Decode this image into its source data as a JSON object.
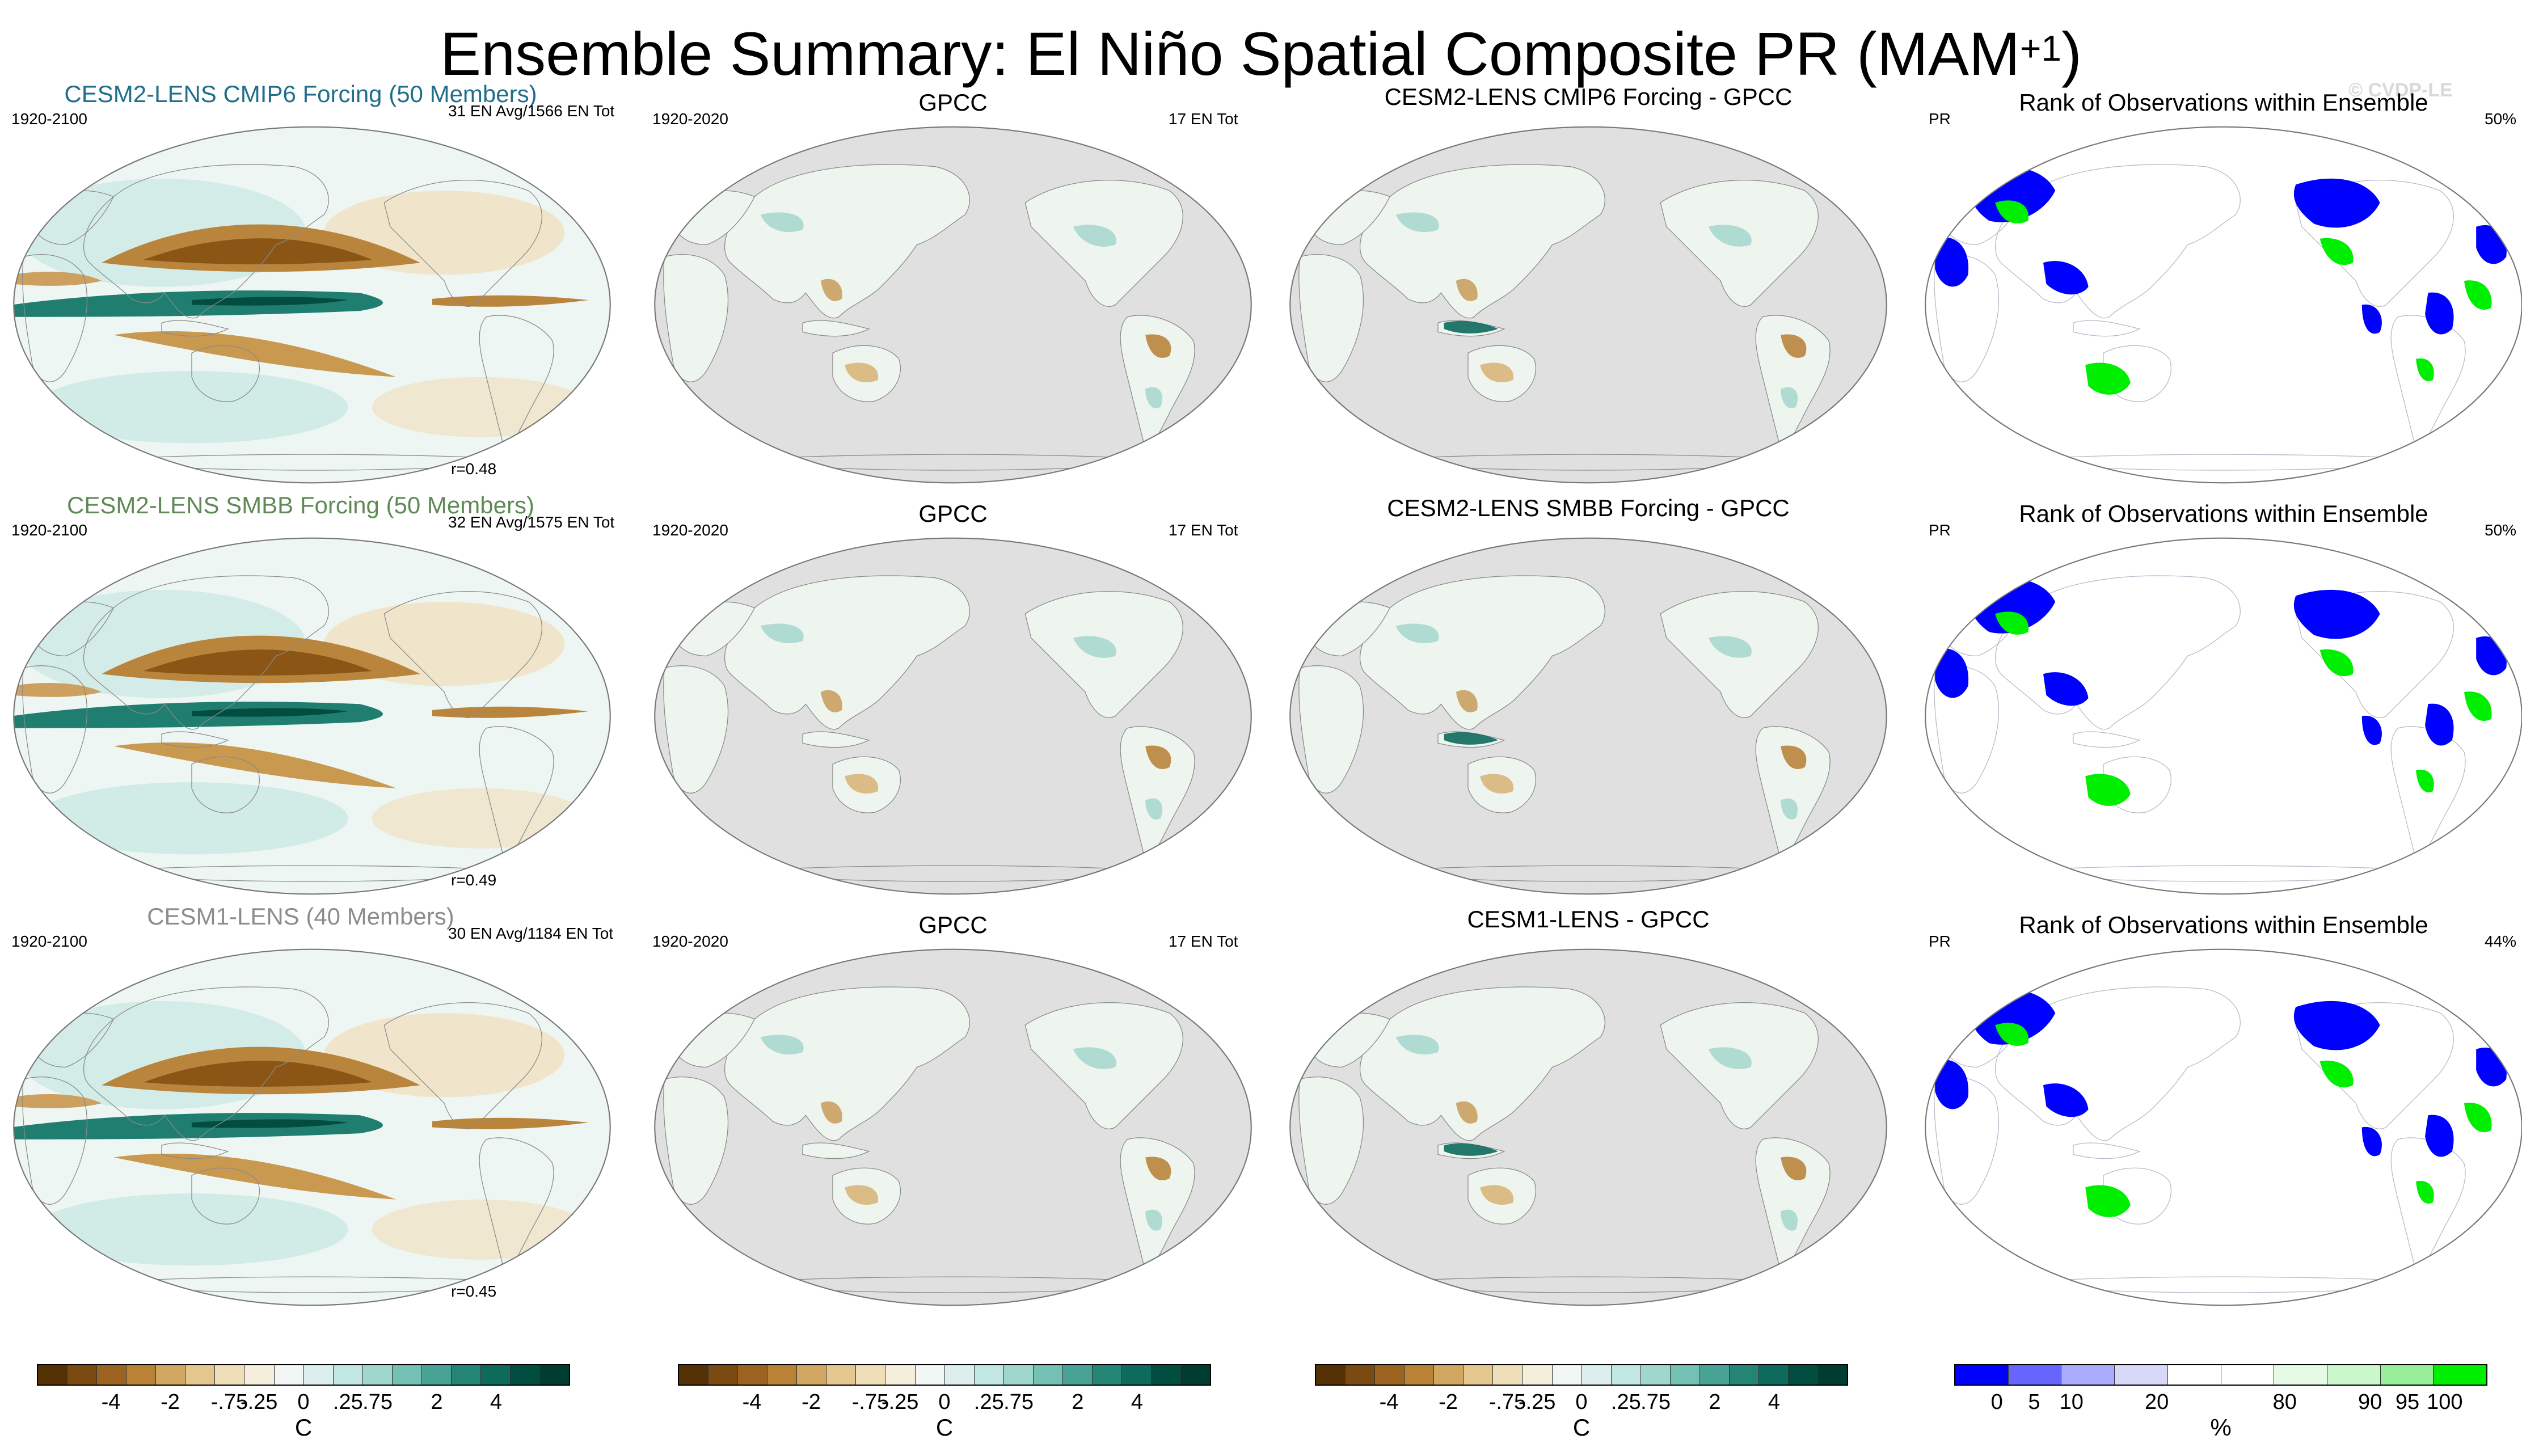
{
  "title": {
    "main": "Ensemble Summary: El Niño Spatial Composite PR (MAM",
    "superscript": "+1",
    "close": ")"
  },
  "watermark": "© CVDP-LE",
  "rows": [
    {
      "ensemble": {
        "title": "CESM2-LENS CMIP6 Forcing (50 Members)",
        "title_color": "#1f6f8b",
        "period": "1920-2100",
        "counts": "31 EN Avg/1566 EN Tot",
        "corr": "r=0.48"
      },
      "obs": {
        "title": "GPCC",
        "period": "1920-2020",
        "counts": "17 EN Tot"
      },
      "diff": {
        "title": "CESM2-LENS CMIP6 Forcing - GPCC"
      },
      "rank": {
        "title": "Rank of Observations within Ensemble",
        "var": "PR",
        "pct": "50%"
      }
    },
    {
      "ensemble": {
        "title": "CESM2-LENS SMBB Forcing (50 Members)",
        "title_color": "#5f8a55",
        "period": "1920-2100",
        "counts": "32 EN Avg/1575 EN Tot",
        "corr": "r=0.49"
      },
      "obs": {
        "title": "GPCC",
        "period": "1920-2020",
        "counts": "17 EN Tot"
      },
      "diff": {
        "title": "CESM2-LENS SMBB Forcing - GPCC"
      },
      "rank": {
        "title": "Rank of Observations within Ensemble",
        "var": "PR",
        "pct": "50%"
      }
    },
    {
      "ensemble": {
        "title": "CESM1-LENS (40 Members)",
        "title_color": "#8c8c8c",
        "period": "1920-2100",
        "counts": "30 EN Avg/1184 EN Tot",
        "corr": "r=0.45"
      },
      "obs": {
        "title": "GPCC",
        "period": "1920-2020",
        "counts": "17 EN Tot"
      },
      "diff": {
        "title": "CESM1-LENS - GPCC"
      },
      "rank": {
        "title": "Rank of Observations within Ensemble",
        "var": "PR",
        "pct": "44%"
      }
    }
  ],
  "colorbar_brbg": {
    "colors": [
      "#543005",
      "#7a4a12",
      "#9c6320",
      "#b98237",
      "#d1a660",
      "#e3c78f",
      "#efdfb8",
      "#f6eedc",
      "#f2f7f5",
      "#dcefed",
      "#c2e6e1",
      "#9fd6cd",
      "#74c0b3",
      "#48a396",
      "#248576",
      "#0d6a5c",
      "#014d40",
      "#003c30"
    ],
    "labels": [
      "-4",
      "-2",
      "-.75",
      "-.25",
      "0",
      ".25",
      ".75",
      "2",
      "4"
    ],
    "unit": "C"
  },
  "colorbar_rank": {
    "colors": [
      "#0000ff",
      "#6666ff",
      "#aaaaff",
      "#d8d8f8",
      "#ffffff",
      "#ffffff",
      "#e6fbe6",
      "#ccf7cc",
      "#99ee99",
      "#00ee00"
    ],
    "labels": [
      "0",
      "5",
      "10",
      "20",
      "80",
      "90",
      "95",
      "100"
    ],
    "unit": "%"
  }
}
